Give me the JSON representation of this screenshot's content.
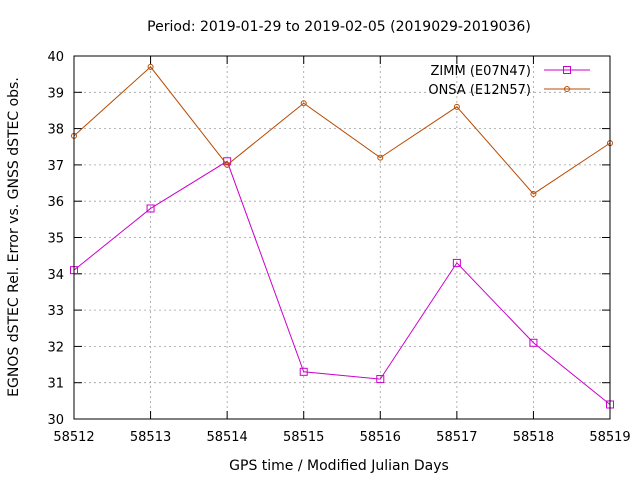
{
  "chart_data": {
    "type": "line",
    "title": "Period: 2019-01-29 to 2019-02-05 (2019029-2019036)",
    "xlabel": "GPS time / Modified Julian Days",
    "ylabel": "EGNOS dSTEC Rel. Error vs. GNSS dSTEC obs.",
    "xlim": [
      58512,
      58519
    ],
    "ylim": [
      30,
      40
    ],
    "x_ticks": [
      "58512",
      "58513",
      "58514",
      "58515",
      "58516",
      "58517",
      "58518",
      "58519"
    ],
    "y_ticks": [
      "30",
      "31",
      "32",
      "33",
      "34",
      "35",
      "36",
      "37",
      "38",
      "39",
      "40"
    ],
    "grid": true,
    "legend_position": "top-right",
    "x": [
      58512,
      58513,
      58514,
      58515,
      58516,
      58517,
      58518,
      58519
    ],
    "series": [
      {
        "name": "ZIMM (E07N47)",
        "color": "#cc00cc",
        "marker": "square",
        "values": [
          34.1,
          35.8,
          37.1,
          31.3,
          31.1,
          34.3,
          32.1,
          30.4
        ]
      },
      {
        "name": "ONSA (E12N57)",
        "color": "#b84a00",
        "marker": "circle",
        "values": [
          37.8,
          39.7,
          37.0,
          38.7,
          37.2,
          38.6,
          36.2,
          37.6
        ]
      }
    ]
  }
}
